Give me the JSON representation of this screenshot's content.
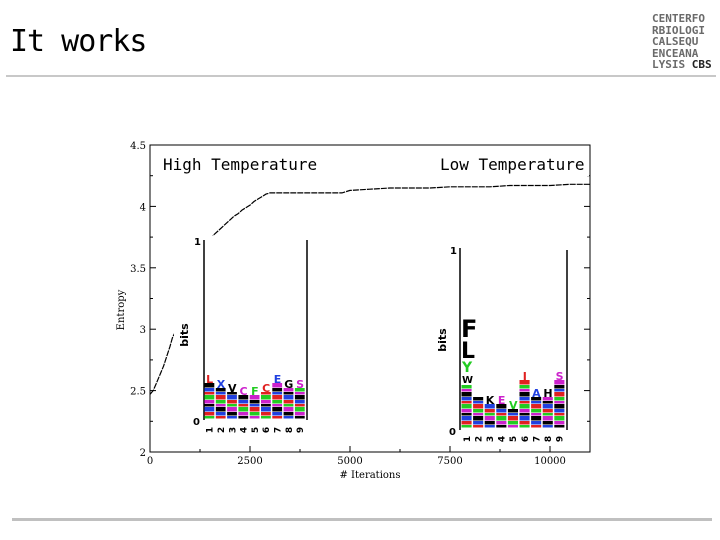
{
  "slide": {
    "title": "It works"
  },
  "logo": {
    "lines": [
      "CENTERFO",
      "RBIOLOGI",
      "CALSEQU",
      "ENCEANA",
      "LYSIS"
    ],
    "accent": "CBS"
  },
  "chart_data": {
    "type": "line",
    "title": "",
    "xlabel": "# Iterations",
    "ylabel": "Entropy",
    "xlim": [
      0,
      11000
    ],
    "ylim": [
      2,
      4.5
    ],
    "xticks": [
      0,
      2500,
      5000,
      7500,
      10000
    ],
    "yticks": [
      2,
      2.5,
      3,
      3.5,
      4,
      4.5
    ],
    "xtick_labels": [
      "0",
      "2500",
      "5000",
      "7500",
      "10000"
    ],
    "ytick_labels": [
      "2",
      "2.5",
      "3",
      "3.5",
      "4",
      "4.5"
    ],
    "annotations": [
      "High Temperature",
      "Low Temperature"
    ],
    "series": [
      {
        "x": [
          0,
          80,
          160,
          250,
          340,
          420,
          500,
          560,
          620,
          700,
          760,
          820,
          880,
          940,
          1000,
          1100,
          1200,
          1300,
          1400,
          1500,
          1600,
          1700,
          1800,
          1900,
          2000,
          2100,
          2200,
          2300,
          2400,
          2500,
          2600,
          2700,
          2800,
          2900,
          3000,
          3200,
          3400,
          3600,
          3800,
          4000,
          4200,
          4400,
          4600,
          4800,
          5000,
          5500,
          6000,
          6500,
          7000,
          7500,
          8000,
          8500,
          9000,
          9500,
          10000,
          10500,
          11000
        ],
        "y": [
          2.47,
          2.5,
          2.56,
          2.63,
          2.7,
          2.78,
          2.86,
          2.93,
          2.97,
          3.0,
          3.02,
          3.04,
          3.06,
          3.08,
          3.3,
          3.42,
          3.52,
          3.6,
          3.67,
          3.72,
          3.77,
          3.8,
          3.83,
          3.86,
          3.89,
          3.92,
          3.94,
          3.97,
          3.99,
          4.01,
          4.04,
          4.06,
          4.08,
          4.1,
          4.11,
          4.11,
          4.11,
          4.11,
          4.11,
          4.11,
          4.11,
          4.11,
          4.11,
          4.11,
          4.13,
          4.14,
          4.15,
          4.15,
          4.15,
          4.16,
          4.16,
          4.16,
          4.17,
          4.17,
          4.17,
          4.18,
          4.18
        ]
      }
    ]
  },
  "logo_high": {
    "y_axis_label": "bits",
    "y_tick_top": "1",
    "y_tick_bottom": "0",
    "positions": [
      "1",
      "2",
      "3",
      "4",
      "5",
      "6",
      "7",
      "8",
      "9"
    ],
    "letters": [
      "L",
      "X",
      "V",
      "C",
      "F",
      "C",
      "E",
      "G",
      "S"
    ]
  },
  "logo_low": {
    "y_axis_label": "bits",
    "y_tick_top": "1",
    "y_tick_bottom": "0",
    "positions": [
      "1",
      "2",
      "3",
      "4",
      "5",
      "6",
      "7",
      "8",
      "9"
    ],
    "big_letters": [
      "F",
      "L",
      "Y",
      "W"
    ],
    "letters": [
      "K",
      "E",
      "V",
      "I",
      "A",
      "H",
      "S",
      "A"
    ]
  },
  "colors": {
    "line": "#000000",
    "axis": "#000000",
    "rule": "#c8c8c8",
    "logo_green": "#22cc22",
    "logo_red": "#e02020",
    "logo_blue": "#2040e0",
    "logo_black": "#000000",
    "logo_magenta": "#cc22cc"
  }
}
